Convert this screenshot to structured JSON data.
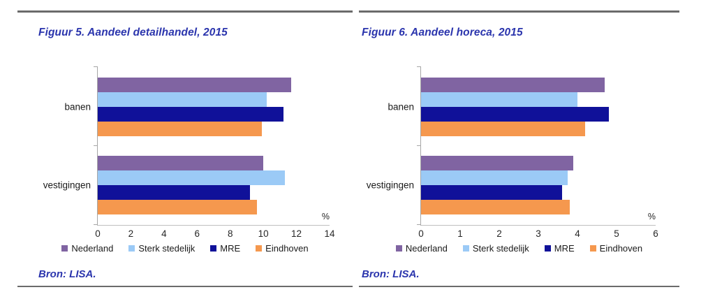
{
  "chart_data": [
    {
      "type": "bar",
      "orientation": "horizontal",
      "title": "Figuur 5. Aandeel detailhandel, 2015",
      "categories": [
        "banen",
        "vestigingen"
      ],
      "series": [
        {
          "name": "Nederland",
          "color": "#8064A2",
          "values": [
            11.7,
            10.0
          ]
        },
        {
          "name": "Sterk stedelijk",
          "color": "#9BCAF6",
          "values": [
            10.2,
            11.3
          ]
        },
        {
          "name": "MRE",
          "color": "#101199",
          "values": [
            11.2,
            9.2
          ]
        },
        {
          "name": "Eindhoven",
          "color": "#F5984E",
          "values": [
            9.9,
            9.6
          ]
        }
      ],
      "xlim": [
        0,
        14
      ],
      "xticks": [
        0,
        2,
        4,
        6,
        8,
        10,
        12,
        14
      ],
      "xlabel": "%",
      "grid": false,
      "legend_position": "bottom",
      "source": "Bron: LISA."
    },
    {
      "type": "bar",
      "orientation": "horizontal",
      "title": "Figuur 6. Aandeel horeca, 2015",
      "categories": [
        "banen",
        "vestigingen"
      ],
      "series": [
        {
          "name": "Nederland",
          "color": "#8064A2",
          "values": [
            4.7,
            3.9
          ]
        },
        {
          "name": "Sterk stedelijk",
          "color": "#9BCAF6",
          "values": [
            4.0,
            3.75
          ]
        },
        {
          "name": "MRE",
          "color": "#101199",
          "values": [
            4.8,
            3.6
          ]
        },
        {
          "name": "Eindhoven",
          "color": "#F5984E",
          "values": [
            4.2,
            3.8
          ]
        }
      ],
      "xlim": [
        0,
        6
      ],
      "xticks": [
        0,
        1,
        2,
        3,
        4,
        5,
        6
      ],
      "xlabel": "%",
      "grid": false,
      "legend_position": "bottom",
      "source": "Bron: LISA."
    }
  ]
}
